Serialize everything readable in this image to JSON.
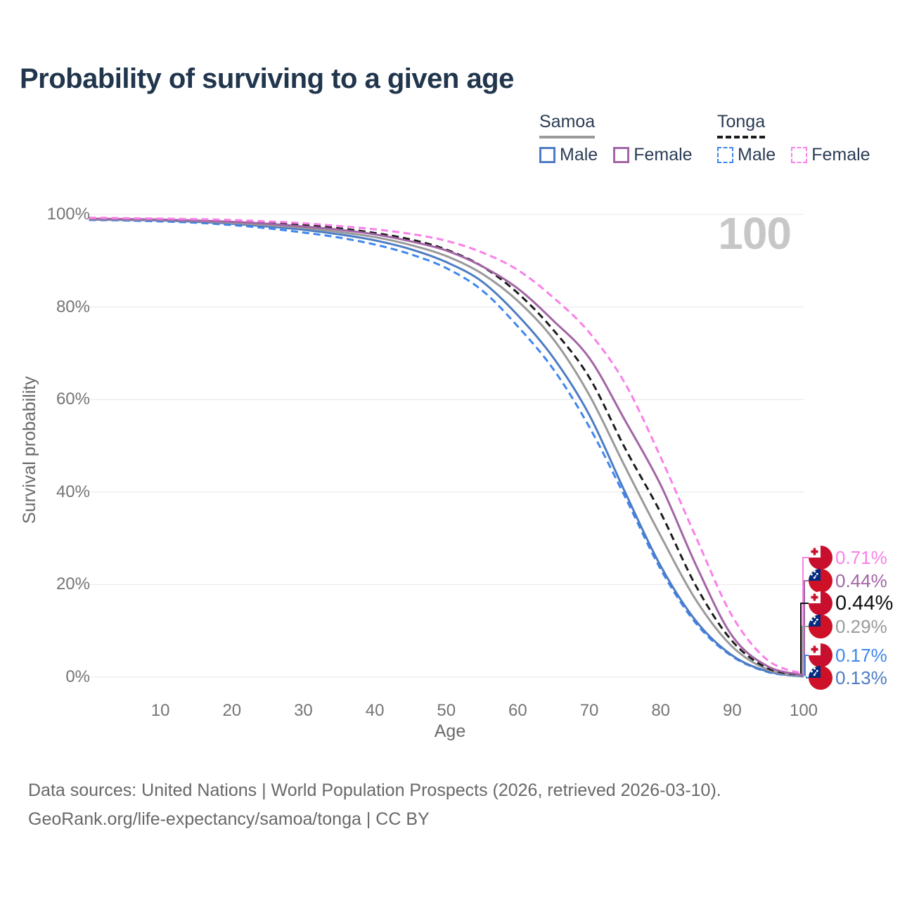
{
  "page": {
    "title": "Probability of surviving to a given age"
  },
  "watermark": "100",
  "legend": {
    "groups": [
      {
        "label": "Samoa",
        "line_style": "solid",
        "underline_color": "#9a9a9a",
        "items": [
          {
            "label": "Male",
            "color": "#4d7cc4",
            "dash": false
          },
          {
            "label": "Female",
            "color": "#a265a5",
            "dash": false
          }
        ]
      },
      {
        "label": "Tonga",
        "line_style": "dashed",
        "underline_color": "#1c1c1c",
        "items": [
          {
            "label": "Male",
            "color": "#3e86f0",
            "dash": true
          },
          {
            "label": "Female",
            "color": "#f980e8",
            "dash": true
          }
        ]
      }
    ]
  },
  "chart_data": {
    "type": "line",
    "title": "Probability of surviving to a given age",
    "xlabel": "Age",
    "ylabel": "Survival probability",
    "xlim": [
      0,
      100
    ],
    "ylim": [
      0,
      100
    ],
    "xticks": [
      10,
      20,
      30,
      40,
      50,
      60,
      70,
      80,
      90,
      100
    ],
    "yticks": [
      0,
      20,
      40,
      60,
      80,
      100
    ],
    "ytick_suffix": "%",
    "grid": "horizontal",
    "legend_position": "top-right",
    "x": [
      0,
      5,
      10,
      15,
      20,
      25,
      30,
      35,
      40,
      45,
      50,
      55,
      60,
      65,
      70,
      75,
      80,
      85,
      90,
      95,
      100
    ],
    "series": [
      {
        "name": "Tonga Male",
        "country": "Tonga",
        "sex": "male",
        "color": "#3e86f0",
        "dash": true,
        "values": [
          98.8,
          98.7,
          98.5,
          98.2,
          97.7,
          97.0,
          96.1,
          95.0,
          93.5,
          91.4,
          88.4,
          83.6,
          75.8,
          66.5,
          54.1,
          39.0,
          23.3,
          11.5,
          4.5,
          1.1,
          0.17
        ]
      },
      {
        "name": "Samoa Male",
        "country": "Samoa",
        "sex": "male",
        "color": "#4d7cc4",
        "dash": false,
        "values": [
          98.9,
          98.8,
          98.7,
          98.4,
          98.0,
          97.4,
          96.7,
          95.7,
          94.4,
          92.5,
          89.7,
          85.5,
          78.2,
          69.0,
          56.7,
          40.0,
          24.0,
          12.0,
          4.7,
          1.2,
          0.13
        ]
      },
      {
        "name": "Samoa",
        "country": "Samoa",
        "sex": "both",
        "color": "#9a9a9a",
        "dash": false,
        "values": [
          99.0,
          98.9,
          98.8,
          98.6,
          98.2,
          97.7,
          97.1,
          96.2,
          95.1,
          93.4,
          91.0,
          87.2,
          81.3,
          73.0,
          61.0,
          45.5,
          30.5,
          16.5,
          6.6,
          1.6,
          0.29
        ]
      },
      {
        "name": "Tonga",
        "country": "Tonga",
        "sex": "both",
        "color": "#1c1c1c",
        "dash": true,
        "values": [
          99.2,
          99.1,
          99.0,
          98.8,
          98.6,
          98.2,
          97.7,
          97.0,
          96.0,
          94.6,
          92.4,
          88.8,
          83.0,
          75.0,
          64.8,
          49.5,
          35.5,
          19.5,
          7.8,
          1.9,
          0.44
        ]
      },
      {
        "name": "Samoa Female",
        "country": "Samoa",
        "sex": "female",
        "color": "#a265a5",
        "dash": false,
        "values": [
          99.1,
          99.0,
          98.9,
          98.7,
          98.4,
          98.0,
          97.4,
          96.7,
          95.7,
          94.2,
          92.2,
          88.8,
          84.0,
          77.0,
          69.0,
          55.5,
          41.5,
          24.0,
          8.9,
          2.3,
          0.44
        ]
      },
      {
        "name": "Tonga Female",
        "country": "Tonga",
        "sex": "female",
        "color": "#f980e8",
        "dash": true,
        "values": [
          99.3,
          99.2,
          99.1,
          99.0,
          98.8,
          98.5,
          98.1,
          97.5,
          96.8,
          95.8,
          94.3,
          91.8,
          88.0,
          82.0,
          74.5,
          63.5,
          47.5,
          30.0,
          13.2,
          3.6,
          0.71
        ]
      }
    ],
    "end_labels": [
      {
        "flag": "tonga",
        "series": "Tonga Female",
        "value": 0.71,
        "value_label": "0.71%",
        "color": "#f980e8",
        "emphasis": false
      },
      {
        "flag": "samoa",
        "series": "Samoa Female",
        "value": 0.44,
        "value_label": "0.44%",
        "color": "#a265a5",
        "emphasis": false
      },
      {
        "flag": "tonga",
        "series": "Tonga",
        "value": 0.44,
        "value_label": "0.44%",
        "color": "#111111",
        "emphasis": true
      },
      {
        "flag": "samoa",
        "series": "Samoa",
        "value": 0.29,
        "value_label": "0.29%",
        "color": "#9a9a9a",
        "emphasis": false
      },
      {
        "flag": "tonga",
        "series": "Tonga Male",
        "value": 0.17,
        "value_label": "0.17%",
        "color": "#3e86f0",
        "emphasis": false
      },
      {
        "flag": "samoa",
        "series": "Samoa Male",
        "value": 0.13,
        "value_label": "0.13%",
        "color": "#4d7cc4",
        "emphasis": false
      }
    ]
  },
  "colors": {
    "title": "#21364d",
    "axis_text": "#757575",
    "gridline": "#ececec",
    "watermark": "#c7c7c7",
    "tonga_flag_red": "#c8102e",
    "samoa_flag_red": "#ce1126",
    "samoa_flag_blue": "#002b7f"
  },
  "footer": {
    "line1": "Data sources: United Nations | World Population Prospects (2026, retrieved 2026-03-10).",
    "line2": "GeoRank.org/life-expectancy/samoa/tonga | CC BY"
  }
}
